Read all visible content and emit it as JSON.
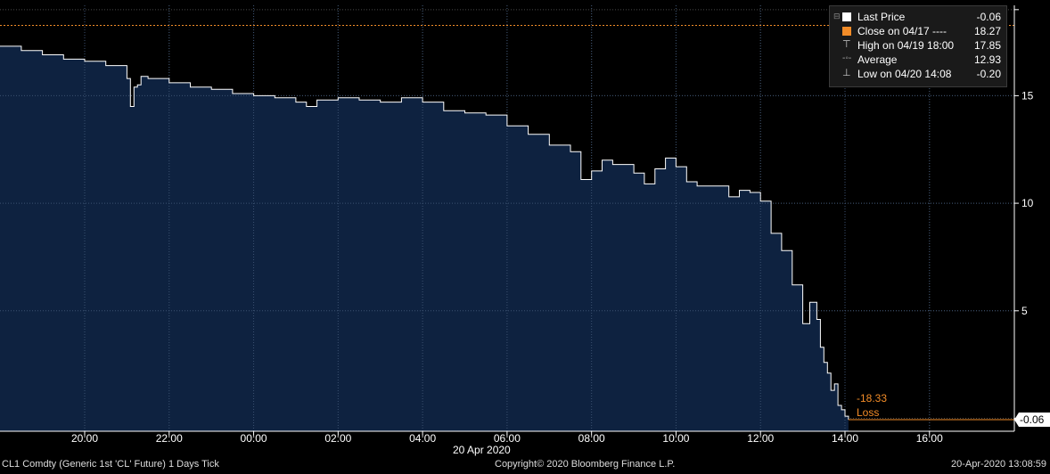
{
  "chart_data": {
    "type": "area",
    "title": "",
    "xlabel": "",
    "ylabel": "",
    "x_ticks": [
      "20:00",
      "22:00",
      "00:00",
      "02:00",
      "04:00",
      "06:00",
      "08:00",
      "10:00",
      "12:00",
      "14:00",
      "16:00"
    ],
    "x_date_label": "20 Apr 2020",
    "y_ticks": [
      5,
      10,
      15
    ],
    "ylim": [
      -0.6,
      19.2
    ],
    "grid": true,
    "series": [
      {
        "name": "Last Price",
        "x": [
          "18:05",
          "18:30",
          "19:00",
          "19:30",
          "20:00",
          "20:30",
          "21:00",
          "21:05",
          "21:10",
          "21:15",
          "21:20",
          "21:30",
          "22:00",
          "22:30",
          "23:00",
          "23:30",
          "00:00",
          "00:30",
          "01:00",
          "01:15",
          "01:30",
          "02:00",
          "02:30",
          "03:00",
          "03:30",
          "04:00",
          "04:30",
          "05:00",
          "05:30",
          "06:00",
          "06:30",
          "07:00",
          "07:30",
          "07:45",
          "08:00",
          "08:15",
          "08:30",
          "09:00",
          "09:15",
          "09:30",
          "09:45",
          "10:00",
          "10:15",
          "10:30",
          "11:00",
          "11:15",
          "11:30",
          "11:45",
          "12:00",
          "12:15",
          "12:30",
          "12:45",
          "13:00",
          "13:10",
          "13:20",
          "13:25",
          "13:30",
          "13:35",
          "13:40",
          "13:45",
          "13:50",
          "13:55",
          "14:00",
          "14:05"
        ],
        "y": [
          17.3,
          17.1,
          16.9,
          16.7,
          16.6,
          16.4,
          15.8,
          14.5,
          15.4,
          15.5,
          15.9,
          15.8,
          15.6,
          15.4,
          15.3,
          15.1,
          15.0,
          14.9,
          14.7,
          14.5,
          14.8,
          14.9,
          14.8,
          14.7,
          14.9,
          14.7,
          14.3,
          14.2,
          14.1,
          13.6,
          13.2,
          12.7,
          12.4,
          11.1,
          11.5,
          12.0,
          11.8,
          11.4,
          10.9,
          11.6,
          12.1,
          11.7,
          11.0,
          10.8,
          10.8,
          10.3,
          10.6,
          10.5,
          10.1,
          8.6,
          7.8,
          6.2,
          4.4,
          5.4,
          4.6,
          3.3,
          2.6,
          2.1,
          1.3,
          1.6,
          0.6,
          0.4,
          0.1,
          -0.06
        ]
      }
    ],
    "reference_lines": [
      {
        "name": "Close on 04/17",
        "value": 18.27,
        "color": "#f28c28"
      },
      {
        "name": "Last Price",
        "value": -0.06,
        "color": "#f28c28"
      }
    ],
    "legend": {
      "placement": "top-right",
      "entries": [
        {
          "label": "Last Price",
          "value": "-0.06",
          "color": "#ffffff",
          "icon": "white-square"
        },
        {
          "label": "Close on 04/17 ----",
          "value": "18.27",
          "color": "#f28c28",
          "icon": "orange-square"
        },
        {
          "label": "High on 04/19 18:00",
          "value": "17.85",
          "color": "#ffffff",
          "icon": "high-marker-icon"
        },
        {
          "label": "Average",
          "value": "12.93",
          "color": "#ffffff",
          "icon": "average-marker-icon"
        },
        {
          "label": "Low on 04/20 14:08",
          "value": "-0.20",
          "color": "#ffffff",
          "icon": "low-marker-icon"
        }
      ]
    },
    "last_price_tag": "-0.06",
    "annotation": {
      "value": "-18.33",
      "label": "Loss"
    }
  },
  "footer": {
    "security": "CL1 Comdty (Generic 1st 'CL' Future) 1 Days  Tick",
    "copyright": "Copyright© 2020 Bloomberg Finance L.P.",
    "timestamp": "20-Apr-2020 13:08:59"
  },
  "colors": {
    "background": "#000000",
    "area_fill": "#0e2240",
    "line": "#ffffff",
    "accent": "#f28c28",
    "grid": "#4a4a4a",
    "legend_bg": "#1a1a1a"
  }
}
